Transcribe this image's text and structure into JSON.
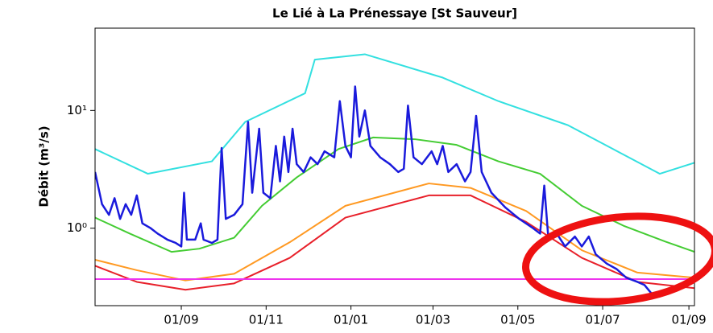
{
  "chart_data": {
    "type": "line",
    "title": "Le Lié à La Prénessaye [St Sauveur]",
    "y_label": "Débit (m³/s)",
    "log_scale_y": true,
    "xlim": [
      0,
      431
    ],
    "xticks": [
      {
        "value": 62,
        "label": "01/09"
      },
      {
        "value": 123,
        "label": "01/11"
      },
      {
        "value": 184,
        "label": "01/01"
      },
      {
        "value": 243,
        "label": "01/03"
      },
      {
        "value": 304,
        "label": "01/05"
      },
      {
        "value": 365,
        "label": "01/07"
      },
      {
        "value": 427,
        "label": "01/09"
      }
    ],
    "ylim": [
      0.22,
      50
    ],
    "yticks": [
      {
        "value": 1,
        "label": "10⁰"
      },
      {
        "value": 10,
        "label": "10¹"
      }
    ],
    "series": [
      {
        "color": "#33e0e0",
        "width": 2,
        "x": [
          0,
          38,
          84,
          108,
          151,
          158,
          194,
          250,
          290,
          340,
          406,
          431
        ],
        "values": [
          4.7,
          2.9,
          3.7,
          8,
          14,
          27,
          30,
          19,
          12,
          7.5,
          2.9,
          3.6
        ]
      },
      {
        "color": "#44cc33",
        "width": 2,
        "x": [
          0,
          25,
          55,
          75,
          100,
          120,
          145,
          175,
          200,
          230,
          260,
          290,
          320,
          350,
          380,
          410,
          431
        ],
        "values": [
          1.23,
          0.9,
          0.63,
          0.67,
          0.83,
          1.55,
          2.7,
          4.7,
          5.9,
          5.7,
          5.1,
          3.7,
          2.9,
          1.55,
          1.05,
          0.77,
          0.63
        ]
      },
      {
        "color": "#ff9922",
        "width": 2,
        "x": [
          0,
          30,
          65,
          100,
          140,
          180,
          240,
          270,
          310,
          350,
          390,
          431
        ],
        "values": [
          0.54,
          0.44,
          0.36,
          0.41,
          0.76,
          1.55,
          2.4,
          2.2,
          1.4,
          0.65,
          0.42,
          0.38
        ]
      },
      {
        "color": "#e8202a",
        "width": 2,
        "x": [
          0,
          30,
          65,
          100,
          140,
          180,
          240,
          270,
          310,
          350,
          390,
          431
        ],
        "values": [
          0.48,
          0.35,
          0.3,
          0.34,
          0.56,
          1.23,
          1.9,
          1.9,
          1.13,
          0.56,
          0.35,
          0.31
        ]
      },
      {
        "color": "#ee33ee",
        "width": 2,
        "x": [
          0,
          431
        ],
        "values": [
          0.37,
          0.37
        ]
      },
      {
        "color": "#1a1adc",
        "width": 2.5,
        "x": [
          0,
          5,
          10,
          14,
          18,
          22,
          26,
          30,
          34,
          40,
          45,
          52,
          58,
          62,
          64,
          66,
          72,
          76,
          78,
          84,
          88,
          91,
          94,
          100,
          106,
          110,
          113,
          118,
          121,
          126,
          130,
          133,
          136,
          139,
          142,
          145,
          150,
          155,
          160,
          165,
          172,
          176,
          180,
          184,
          187,
          190,
          194,
          198,
          205,
          212,
          218,
          222,
          225,
          229,
          235,
          242,
          246,
          250,
          254,
          260,
          266,
          270,
          274,
          278,
          285,
          295,
          305,
          315,
          320,
          323,
          326,
          332,
          338,
          345,
          350,
          355,
          360,
          368,
          375,
          382,
          390,
          395,
          400
        ],
        "values": [
          3.0,
          1.6,
          1.3,
          1.8,
          1.2,
          1.6,
          1.3,
          1.9,
          1.1,
          1.0,
          0.9,
          0.8,
          0.75,
          0.7,
          2.0,
          0.8,
          0.8,
          1.1,
          0.8,
          0.75,
          0.8,
          4.8,
          1.2,
          1.3,
          1.6,
          8.0,
          2.0,
          7.0,
          2.0,
          1.8,
          5.0,
          2.5,
          6.0,
          3.0,
          7.0,
          3.5,
          3.0,
          4.0,
          3.5,
          4.5,
          4.0,
          12,
          5,
          4,
          16,
          6,
          10,
          5,
          4,
          3.5,
          3.0,
          3.2,
          11,
          4,
          3.5,
          4.5,
          3.5,
          5.0,
          3.0,
          3.5,
          2.5,
          3.0,
          9,
          3.0,
          2.0,
          1.5,
          1.2,
          1.0,
          0.9,
          2.3,
          0.8,
          0.9,
          0.7,
          0.85,
          0.7,
          0.85,
          0.6,
          0.5,
          0.45,
          0.38,
          0.35,
          0.33,
          0.28
        ]
      }
    ]
  }
}
